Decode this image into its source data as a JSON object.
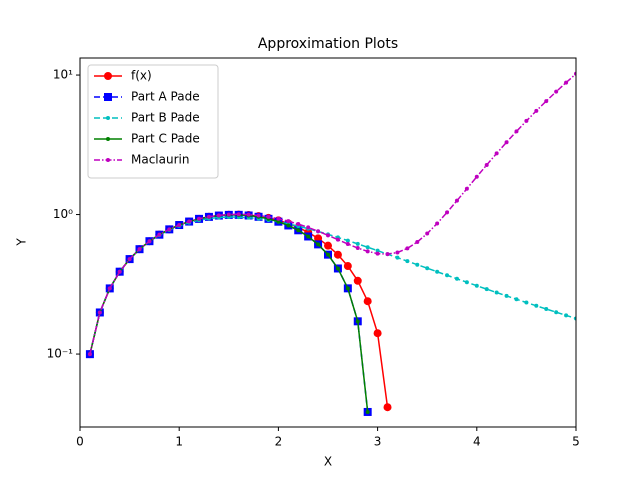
{
  "chart_data": {
    "type": "line",
    "title": "Approximation Plots",
    "xlabel": "X",
    "ylabel": "Y",
    "yscale": "log",
    "legend": "upper left",
    "xlim": [
      0,
      5
    ],
    "ylim": [
      0.03,
      13.25
    ],
    "xticks": [
      0,
      1,
      2,
      3,
      4,
      5
    ],
    "yticks": [
      {
        "value": 0.1,
        "label": "10⁻¹"
      },
      {
        "value": 1,
        "label": "10⁰"
      },
      {
        "value": 10,
        "label": "10¹"
      }
    ],
    "x": [
      0.1,
      0.2,
      0.3,
      0.4,
      0.5,
      0.6,
      0.7,
      0.8,
      0.9,
      1.0,
      1.1,
      1.2,
      1.3,
      1.4,
      1.5,
      1.6,
      1.7,
      1.8,
      1.9,
      2.0,
      2.1,
      2.2,
      2.3,
      2.4,
      2.5,
      2.6,
      2.7,
      2.8,
      2.9,
      3.0,
      3.1,
      3.2,
      3.3,
      3.4,
      3.5,
      3.6,
      3.7,
      3.8,
      3.9,
      4.0,
      4.1,
      4.2,
      4.3,
      4.4,
      4.5,
      4.6,
      4.7,
      4.8,
      4.9,
      5.0
    ],
    "series": [
      {
        "name": "f(x)",
        "color": "#ff0000",
        "linestyle": "solid",
        "marker": "circle",
        "values": [
          0.0998,
          0.1987,
          0.2955,
          0.3894,
          0.4794,
          0.5646,
          0.6442,
          0.7174,
          0.7833,
          0.8415,
          0.8912,
          0.932,
          0.9636,
          0.9854,
          0.9975,
          0.9996,
          0.9917,
          0.9738,
          0.9463,
          0.9093,
          0.8632,
          0.8085,
          0.7457,
          0.6755,
          0.5985,
          0.5155,
          0.4274,
          0.335,
          0.2392,
          0.1411,
          0.0416,
          null,
          null,
          null,
          null,
          null,
          null,
          null,
          null,
          null,
          null,
          null,
          null,
          null,
          null,
          null,
          null,
          null,
          null,
          null
        ]
      },
      {
        "name": "Part A Pade",
        "color": "#0000ff",
        "linestyle": "dashed",
        "marker": "square",
        "values": [
          0.09983,
          0.19867,
          0.29552,
          0.38942,
          0.47942,
          0.56464,
          0.6442,
          0.71731,
          0.78323,
          0.84127,
          0.89082,
          0.93134,
          0.96236,
          0.98349,
          0.99438,
          0.9948,
          0.98455,
          0.96351,
          0.93163,
          0.88889,
          0.83535,
          0.77112,
          0.69634,
          0.61118,
          0.51587,
          0.41067,
          0.29582,
          0.17165,
          0.03845,
          null,
          null,
          null,
          null,
          null,
          null,
          null,
          null,
          null,
          null,
          null,
          null,
          null,
          null,
          null,
          null,
          null,
          null,
          null,
          null,
          null
        ]
      },
      {
        "name": "Part B Pade",
        "color": "#00bfbf",
        "linestyle": "dashed",
        "marker": "dot",
        "values": [
          0.09983,
          0.19865,
          0.29542,
          0.38912,
          0.4787,
          0.56311,
          0.64133,
          0.71241,
          0.77548,
          0.82981,
          0.87486,
          0.91032,
          0.93611,
          0.95243,
          0.95968,
          0.95853,
          0.94976,
          0.93433,
          0.91322,
          0.88747,
          0.85807,
          0.82594,
          0.79195,
          0.75682,
          0.72121,
          0.68563,
          0.65052,
          0.61622,
          0.58296,
          0.55095,
          0.52031,
          0.49111,
          0.46338,
          0.43714,
          0.41237,
          0.38903,
          0.36709,
          0.34647,
          0.32713,
          0.30898,
          0.29198,
          0.27605,
          0.26113,
          0.24716,
          0.23406,
          0.2218,
          0.2103,
          0.19953,
          0.18942,
          0.17994
        ]
      },
      {
        "name": "Part C Pade",
        "color": "#008000",
        "linestyle": "solid",
        "marker": "dot",
        "values": [
          0.09983,
          0.19867,
          0.29552,
          0.38942,
          0.47942,
          0.56464,
          0.6442,
          0.71731,
          0.78323,
          0.84127,
          0.89082,
          0.93134,
          0.96236,
          0.98349,
          0.99438,
          0.9948,
          0.98455,
          0.96351,
          0.93163,
          0.88889,
          0.83535,
          0.77112,
          0.69634,
          0.61118,
          0.51587,
          0.41067,
          0.29582,
          0.17165,
          0.03845,
          null,
          null,
          null,
          null,
          null,
          null,
          null,
          null,
          null,
          null,
          null,
          null,
          null,
          null,
          null,
          null,
          null,
          null,
          null,
          null,
          null
        ]
      },
      {
        "name": "Maclaurin",
        "color": "#bf00bf",
        "linestyle": "dashdot",
        "marker": "dot",
        "values": [
          0.09983,
          0.19867,
          0.29552,
          0.38942,
          0.47943,
          0.56465,
          0.64423,
          0.7174,
          0.78342,
          0.84167,
          0.89159,
          0.93274,
          0.96477,
          0.98748,
          1.00078,
          1.00471,
          0.99949,
          0.98546,
          0.96317,
          0.93333,
          0.89684,
          0.8548,
          0.80853,
          0.75955,
          0.70964,
          0.66079,
          0.61524,
          0.57553,
          0.54443,
          0.525,
          0.5206,
          0.53487,
          0.57178,
          0.63561,
          0.73099,
          0.86285,
          1.03649,
          1.2576,
          1.53218,
          1.86667,
          2.26784,
          2.74292,
          3.2995,
          3.94567,
          4.68984,
          5.54091,
          6.50825,
          7.60167,
          8.83141,
          10.20834
        ]
      }
    ]
  }
}
